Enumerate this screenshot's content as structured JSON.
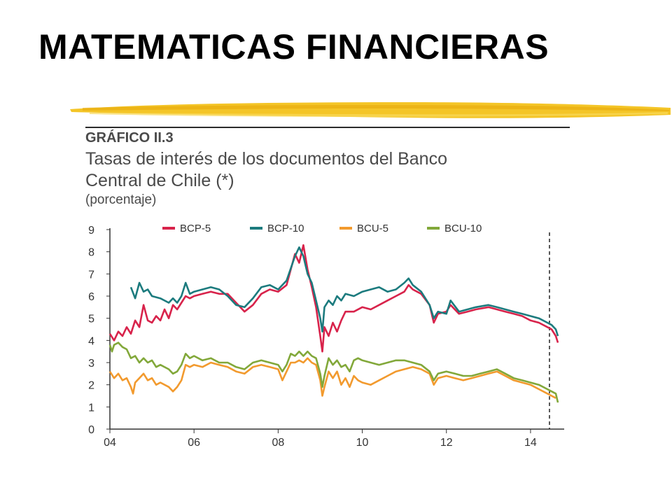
{
  "slide": {
    "title": "MATEMATICAS FINANCIERAS"
  },
  "colors": {
    "brush": "#f3c21b",
    "bcp5": "#d8234b",
    "bcp10": "#1c7b7e",
    "bcu5": "#f29a2e",
    "bcu10": "#82a83a"
  },
  "chart_data": {
    "type": "line",
    "label": "GRÁFICO II.3",
    "title_lines": [
      "Tasas de interés de los documentos del Banco",
      "Central de Chile (*)"
    ],
    "units": "(porcentaje)",
    "xlabel": "",
    "ylabel": "",
    "xlim": [
      2004,
      2014.8
    ],
    "ylim": [
      0,
      9
    ],
    "x_ticks": [
      {
        "value": 2004,
        "label": "04"
      },
      {
        "value": 2006,
        "label": "06"
      },
      {
        "value": 2008,
        "label": "08"
      },
      {
        "value": 2010,
        "label": "10"
      },
      {
        "value": 2012,
        "label": "12"
      },
      {
        "value": 2014,
        "label": "14"
      }
    ],
    "y_ticks": [
      0,
      1,
      2,
      3,
      4,
      5,
      6,
      7,
      8,
      9
    ],
    "grid": false,
    "legend_position": "top",
    "vline": {
      "x": 2014.45,
      "style": "dashed"
    },
    "series": [
      {
        "name": "BCP-5",
        "color_key": "bcp5",
        "points": [
          [
            2004.0,
            4.3
          ],
          [
            2004.1,
            4.0
          ],
          [
            2004.2,
            4.4
          ],
          [
            2004.3,
            4.2
          ],
          [
            2004.4,
            4.6
          ],
          [
            2004.5,
            4.3
          ],
          [
            2004.6,
            4.9
          ],
          [
            2004.7,
            4.6
          ],
          [
            2004.8,
            5.6
          ],
          [
            2004.9,
            4.9
          ],
          [
            2005.0,
            4.8
          ],
          [
            2005.1,
            5.1
          ],
          [
            2005.2,
            4.9
          ],
          [
            2005.3,
            5.4
          ],
          [
            2005.4,
            5.0
          ],
          [
            2005.5,
            5.6
          ],
          [
            2005.6,
            5.4
          ],
          [
            2005.7,
            5.7
          ],
          [
            2005.8,
            6.0
          ],
          [
            2005.9,
            5.9
          ],
          [
            2006.0,
            6.0
          ],
          [
            2006.2,
            6.1
          ],
          [
            2006.4,
            6.2
          ],
          [
            2006.6,
            6.1
          ],
          [
            2006.8,
            6.1
          ],
          [
            2007.0,
            5.7
          ],
          [
            2007.2,
            5.3
          ],
          [
            2007.4,
            5.6
          ],
          [
            2007.6,
            6.1
          ],
          [
            2007.8,
            6.3
          ],
          [
            2008.0,
            6.2
          ],
          [
            2008.2,
            6.5
          ],
          [
            2008.4,
            7.9
          ],
          [
            2008.5,
            7.5
          ],
          [
            2008.6,
            8.3
          ],
          [
            2008.7,
            7.2
          ],
          [
            2008.8,
            6.4
          ],
          [
            2008.9,
            5.5
          ],
          [
            2009.0,
            4.2
          ],
          [
            2009.05,
            3.5
          ],
          [
            2009.1,
            4.6
          ],
          [
            2009.2,
            4.2
          ],
          [
            2009.3,
            4.8
          ],
          [
            2009.4,
            4.4
          ],
          [
            2009.5,
            4.9
          ],
          [
            2009.6,
            5.3
          ],
          [
            2009.8,
            5.3
          ],
          [
            2010.0,
            5.5
          ],
          [
            2010.2,
            5.4
          ],
          [
            2010.4,
            5.6
          ],
          [
            2010.6,
            5.8
          ],
          [
            2010.8,
            6.0
          ],
          [
            2011.0,
            6.2
          ],
          [
            2011.1,
            6.5
          ],
          [
            2011.2,
            6.3
          ],
          [
            2011.4,
            6.1
          ],
          [
            2011.6,
            5.6
          ],
          [
            2011.7,
            4.8
          ],
          [
            2011.8,
            5.2
          ],
          [
            2012.0,
            5.3
          ],
          [
            2012.1,
            5.6
          ],
          [
            2012.3,
            5.2
          ],
          [
            2012.5,
            5.3
          ],
          [
            2012.7,
            5.4
          ],
          [
            2013.0,
            5.5
          ],
          [
            2013.2,
            5.4
          ],
          [
            2013.4,
            5.3
          ],
          [
            2013.6,
            5.2
          ],
          [
            2013.8,
            5.1
          ],
          [
            2014.0,
            4.9
          ],
          [
            2014.2,
            4.8
          ],
          [
            2014.4,
            4.6
          ],
          [
            2014.5,
            4.5
          ],
          [
            2014.6,
            4.2
          ],
          [
            2014.65,
            3.9
          ]
        ]
      },
      {
        "name": "BCP-10",
        "color_key": "bcp10",
        "points": [
          [
            2004.5,
            6.4
          ],
          [
            2004.6,
            5.9
          ],
          [
            2004.7,
            6.6
          ],
          [
            2004.8,
            6.2
          ],
          [
            2004.9,
            6.3
          ],
          [
            2005.0,
            6.0
          ],
          [
            2005.2,
            5.9
          ],
          [
            2005.4,
            5.7
          ],
          [
            2005.5,
            5.9
          ],
          [
            2005.6,
            5.7
          ],
          [
            2005.7,
            6.0
          ],
          [
            2005.8,
            6.6
          ],
          [
            2005.9,
            6.1
          ],
          [
            2006.0,
            6.2
          ],
          [
            2006.2,
            6.3
          ],
          [
            2006.4,
            6.4
          ],
          [
            2006.6,
            6.3
          ],
          [
            2006.8,
            6.0
          ],
          [
            2007.0,
            5.6
          ],
          [
            2007.2,
            5.5
          ],
          [
            2007.4,
            5.9
          ],
          [
            2007.6,
            6.4
          ],
          [
            2007.8,
            6.5
          ],
          [
            2008.0,
            6.3
          ],
          [
            2008.2,
            6.7
          ],
          [
            2008.4,
            7.8
          ],
          [
            2008.5,
            8.2
          ],
          [
            2008.6,
            7.8
          ],
          [
            2008.7,
            7.0
          ],
          [
            2008.8,
            6.6
          ],
          [
            2008.9,
            5.8
          ],
          [
            2009.0,
            5.0
          ],
          [
            2009.05,
            4.4
          ],
          [
            2009.1,
            5.5
          ],
          [
            2009.2,
            5.8
          ],
          [
            2009.3,
            5.6
          ],
          [
            2009.4,
            6.0
          ],
          [
            2009.5,
            5.8
          ],
          [
            2009.6,
            6.1
          ],
          [
            2009.8,
            6.0
          ],
          [
            2010.0,
            6.2
          ],
          [
            2010.2,
            6.3
          ],
          [
            2010.4,
            6.4
          ],
          [
            2010.6,
            6.2
          ],
          [
            2010.8,
            6.3
          ],
          [
            2011.0,
            6.6
          ],
          [
            2011.1,
            6.8
          ],
          [
            2011.2,
            6.5
          ],
          [
            2011.4,
            6.2
          ],
          [
            2011.6,
            5.6
          ],
          [
            2011.7,
            5.0
          ],
          [
            2011.8,
            5.3
          ],
          [
            2012.0,
            5.2
          ],
          [
            2012.1,
            5.8
          ],
          [
            2012.3,
            5.3
          ],
          [
            2012.5,
            5.4
          ],
          [
            2012.7,
            5.5
          ],
          [
            2013.0,
            5.6
          ],
          [
            2013.2,
            5.5
          ],
          [
            2013.4,
            5.4
          ],
          [
            2013.6,
            5.3
          ],
          [
            2013.8,
            5.2
          ],
          [
            2014.0,
            5.1
          ],
          [
            2014.2,
            5.0
          ],
          [
            2014.4,
            4.8
          ],
          [
            2014.5,
            4.7
          ],
          [
            2014.6,
            4.5
          ],
          [
            2014.65,
            4.2
          ]
        ]
      },
      {
        "name": "BCU-5",
        "color_key": "bcu5",
        "points": [
          [
            2004.0,
            2.6
          ],
          [
            2004.1,
            2.3
          ],
          [
            2004.2,
            2.5
          ],
          [
            2004.3,
            2.2
          ],
          [
            2004.4,
            2.3
          ],
          [
            2004.5,
            1.9
          ],
          [
            2004.55,
            1.6
          ],
          [
            2004.6,
            2.1
          ],
          [
            2004.7,
            2.3
          ],
          [
            2004.8,
            2.5
          ],
          [
            2004.9,
            2.2
          ],
          [
            2005.0,
            2.3
          ],
          [
            2005.1,
            2.0
          ],
          [
            2005.2,
            2.1
          ],
          [
            2005.4,
            1.9
          ],
          [
            2005.5,
            1.7
          ],
          [
            2005.6,
            1.9
          ],
          [
            2005.7,
            2.2
          ],
          [
            2005.8,
            2.9
          ],
          [
            2005.9,
            2.8
          ],
          [
            2006.0,
            2.9
          ],
          [
            2006.2,
            2.8
          ],
          [
            2006.4,
            3.0
          ],
          [
            2006.6,
            2.9
          ],
          [
            2006.8,
            2.8
          ],
          [
            2007.0,
            2.6
          ],
          [
            2007.2,
            2.5
          ],
          [
            2007.4,
            2.8
          ],
          [
            2007.6,
            2.9
          ],
          [
            2007.8,
            2.8
          ],
          [
            2008.0,
            2.7
          ],
          [
            2008.1,
            2.2
          ],
          [
            2008.2,
            2.6
          ],
          [
            2008.3,
            3.0
          ],
          [
            2008.4,
            3.0
          ],
          [
            2008.5,
            3.1
          ],
          [
            2008.6,
            3.0
          ],
          [
            2008.7,
            3.2
          ],
          [
            2008.8,
            3.0
          ],
          [
            2008.9,
            2.9
          ],
          [
            2009.0,
            2.2
          ],
          [
            2009.05,
            1.5
          ],
          [
            2009.1,
            1.9
          ],
          [
            2009.2,
            2.6
          ],
          [
            2009.3,
            2.3
          ],
          [
            2009.4,
            2.6
          ],
          [
            2009.5,
            2.0
          ],
          [
            2009.6,
            2.3
          ],
          [
            2009.7,
            1.9
          ],
          [
            2009.8,
            2.4
          ],
          [
            2009.9,
            2.2
          ],
          [
            2010.0,
            2.1
          ],
          [
            2010.2,
            2.0
          ],
          [
            2010.4,
            2.2
          ],
          [
            2010.6,
            2.4
          ],
          [
            2010.8,
            2.6
          ],
          [
            2011.0,
            2.7
          ],
          [
            2011.2,
            2.8
          ],
          [
            2011.4,
            2.7
          ],
          [
            2011.6,
            2.5
          ],
          [
            2011.7,
            2.0
          ],
          [
            2011.8,
            2.3
          ],
          [
            2012.0,
            2.4
          ],
          [
            2012.2,
            2.3
          ],
          [
            2012.4,
            2.2
          ],
          [
            2012.6,
            2.3
          ],
          [
            2012.8,
            2.4
          ],
          [
            2013.0,
            2.5
          ],
          [
            2013.2,
            2.6
          ],
          [
            2013.4,
            2.4
          ],
          [
            2013.6,
            2.2
          ],
          [
            2013.8,
            2.1
          ],
          [
            2014.0,
            2.0
          ],
          [
            2014.2,
            1.8
          ],
          [
            2014.4,
            1.6
          ],
          [
            2014.5,
            1.5
          ],
          [
            2014.6,
            1.4
          ]
        ]
      },
      {
        "name": "BCU-10",
        "color_key": "bcu10",
        "points": [
          [
            2004.0,
            3.8
          ],
          [
            2004.05,
            3.5
          ],
          [
            2004.1,
            3.8
          ],
          [
            2004.2,
            3.9
          ],
          [
            2004.3,
            3.7
          ],
          [
            2004.4,
            3.6
          ],
          [
            2004.5,
            3.2
          ],
          [
            2004.6,
            3.3
          ],
          [
            2004.7,
            3.0
          ],
          [
            2004.8,
            3.2
          ],
          [
            2004.9,
            3.0
          ],
          [
            2005.0,
            3.1
          ],
          [
            2005.1,
            2.8
          ],
          [
            2005.2,
            2.9
          ],
          [
            2005.4,
            2.7
          ],
          [
            2005.5,
            2.5
          ],
          [
            2005.6,
            2.6
          ],
          [
            2005.7,
            2.9
          ],
          [
            2005.8,
            3.4
          ],
          [
            2005.9,
            3.2
          ],
          [
            2006.0,
            3.3
          ],
          [
            2006.2,
            3.1
          ],
          [
            2006.4,
            3.2
          ],
          [
            2006.6,
            3.0
          ],
          [
            2006.8,
            3.0
          ],
          [
            2007.0,
            2.8
          ],
          [
            2007.2,
            2.7
          ],
          [
            2007.4,
            3.0
          ],
          [
            2007.6,
            3.1
          ],
          [
            2007.8,
            3.0
          ],
          [
            2008.0,
            2.9
          ],
          [
            2008.1,
            2.6
          ],
          [
            2008.2,
            2.9
          ],
          [
            2008.3,
            3.4
          ],
          [
            2008.4,
            3.3
          ],
          [
            2008.5,
            3.5
          ],
          [
            2008.6,
            3.3
          ],
          [
            2008.7,
            3.5
          ],
          [
            2008.8,
            3.3
          ],
          [
            2008.9,
            3.2
          ],
          [
            2009.0,
            2.5
          ],
          [
            2009.05,
            1.9
          ],
          [
            2009.1,
            2.4
          ],
          [
            2009.2,
            3.2
          ],
          [
            2009.3,
            2.9
          ],
          [
            2009.4,
            3.1
          ],
          [
            2009.5,
            2.8
          ],
          [
            2009.6,
            2.9
          ],
          [
            2009.7,
            2.6
          ],
          [
            2009.8,
            3.1
          ],
          [
            2009.9,
            3.2
          ],
          [
            2010.0,
            3.1
          ],
          [
            2010.2,
            3.0
          ],
          [
            2010.4,
            2.9
          ],
          [
            2010.6,
            3.0
          ],
          [
            2010.8,
            3.1
          ],
          [
            2011.0,
            3.1
          ],
          [
            2011.2,
            3.0
          ],
          [
            2011.4,
            2.9
          ],
          [
            2011.6,
            2.6
          ],
          [
            2011.7,
            2.2
          ],
          [
            2011.8,
            2.5
          ],
          [
            2012.0,
            2.6
          ],
          [
            2012.2,
            2.5
          ],
          [
            2012.4,
            2.4
          ],
          [
            2012.6,
            2.4
          ],
          [
            2012.8,
            2.5
          ],
          [
            2013.0,
            2.6
          ],
          [
            2013.2,
            2.7
          ],
          [
            2013.4,
            2.5
          ],
          [
            2013.6,
            2.3
          ],
          [
            2013.8,
            2.2
          ],
          [
            2014.0,
            2.1
          ],
          [
            2014.2,
            2.0
          ],
          [
            2014.4,
            1.8
          ],
          [
            2014.5,
            1.7
          ],
          [
            2014.6,
            1.6
          ],
          [
            2014.65,
            1.2
          ]
        ]
      }
    ]
  }
}
